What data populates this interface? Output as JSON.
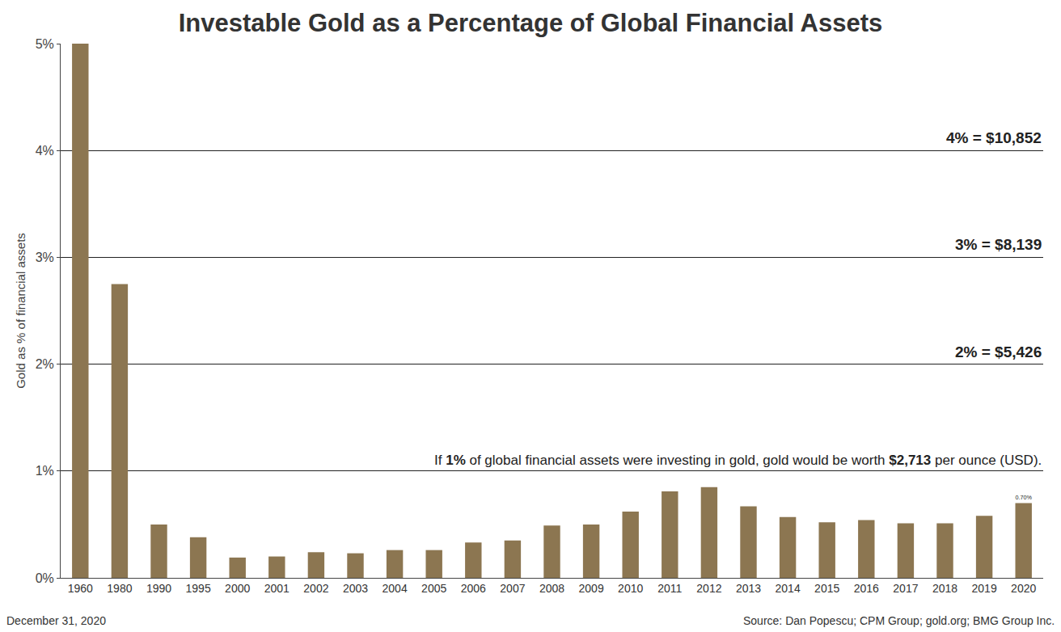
{
  "chart_data": {
    "type": "bar",
    "title": "Investable Gold as a Percentage of Global Financial Assets",
    "y_label": "Gold as % of financial assets",
    "categories": [
      "1960",
      "1980",
      "1990",
      "1995",
      "2000",
      "2001",
      "2002",
      "2003",
      "2004",
      "2005",
      "2006",
      "2007",
      "2008",
      "2009",
      "2010",
      "2011",
      "2012",
      "2013",
      "2014",
      "2015",
      "2016",
      "2017",
      "2018",
      "2019",
      "2020"
    ],
    "values": [
      5.0,
      2.75,
      0.5,
      0.38,
      0.19,
      0.2,
      0.24,
      0.23,
      0.26,
      0.26,
      0.33,
      0.35,
      0.49,
      0.5,
      0.62,
      0.81,
      0.85,
      0.67,
      0.57,
      0.52,
      0.54,
      0.51,
      0.51,
      0.58,
      0.7
    ],
    "value_labels": [
      null,
      null,
      null,
      null,
      null,
      null,
      null,
      null,
      null,
      null,
      null,
      null,
      null,
      null,
      null,
      null,
      null,
      null,
      null,
      null,
      null,
      null,
      null,
      null,
      "0.70%"
    ],
    "color": "#8c7651",
    "ylim": [
      0,
      5
    ],
    "yticks": [
      {
        "value": 0,
        "label": "0%"
      },
      {
        "value": 1,
        "label": "1%"
      },
      {
        "value": 2,
        "label": "2%"
      },
      {
        "value": 3,
        "label": "3%"
      },
      {
        "value": 4,
        "label": "4%"
      },
      {
        "value": 5,
        "label": "5%"
      }
    ],
    "grid": true,
    "reference_lines": [
      {
        "value": 4,
        "label": "4% = $10,852"
      },
      {
        "value": 3,
        "label": "3% = $8,139"
      },
      {
        "value": 2,
        "label": "2% = $5,426"
      },
      {
        "value": 1,
        "label": [
          "If ",
          "1%",
          " of global financial assets were investing in gold, gold would be worth ",
          "$2,713",
          " per ounce (USD)."
        ]
      }
    ],
    "date": "December 31, 2020",
    "source": "Source: Dan Popescu; CPM Group; gold.org; BMG Group Inc."
  }
}
